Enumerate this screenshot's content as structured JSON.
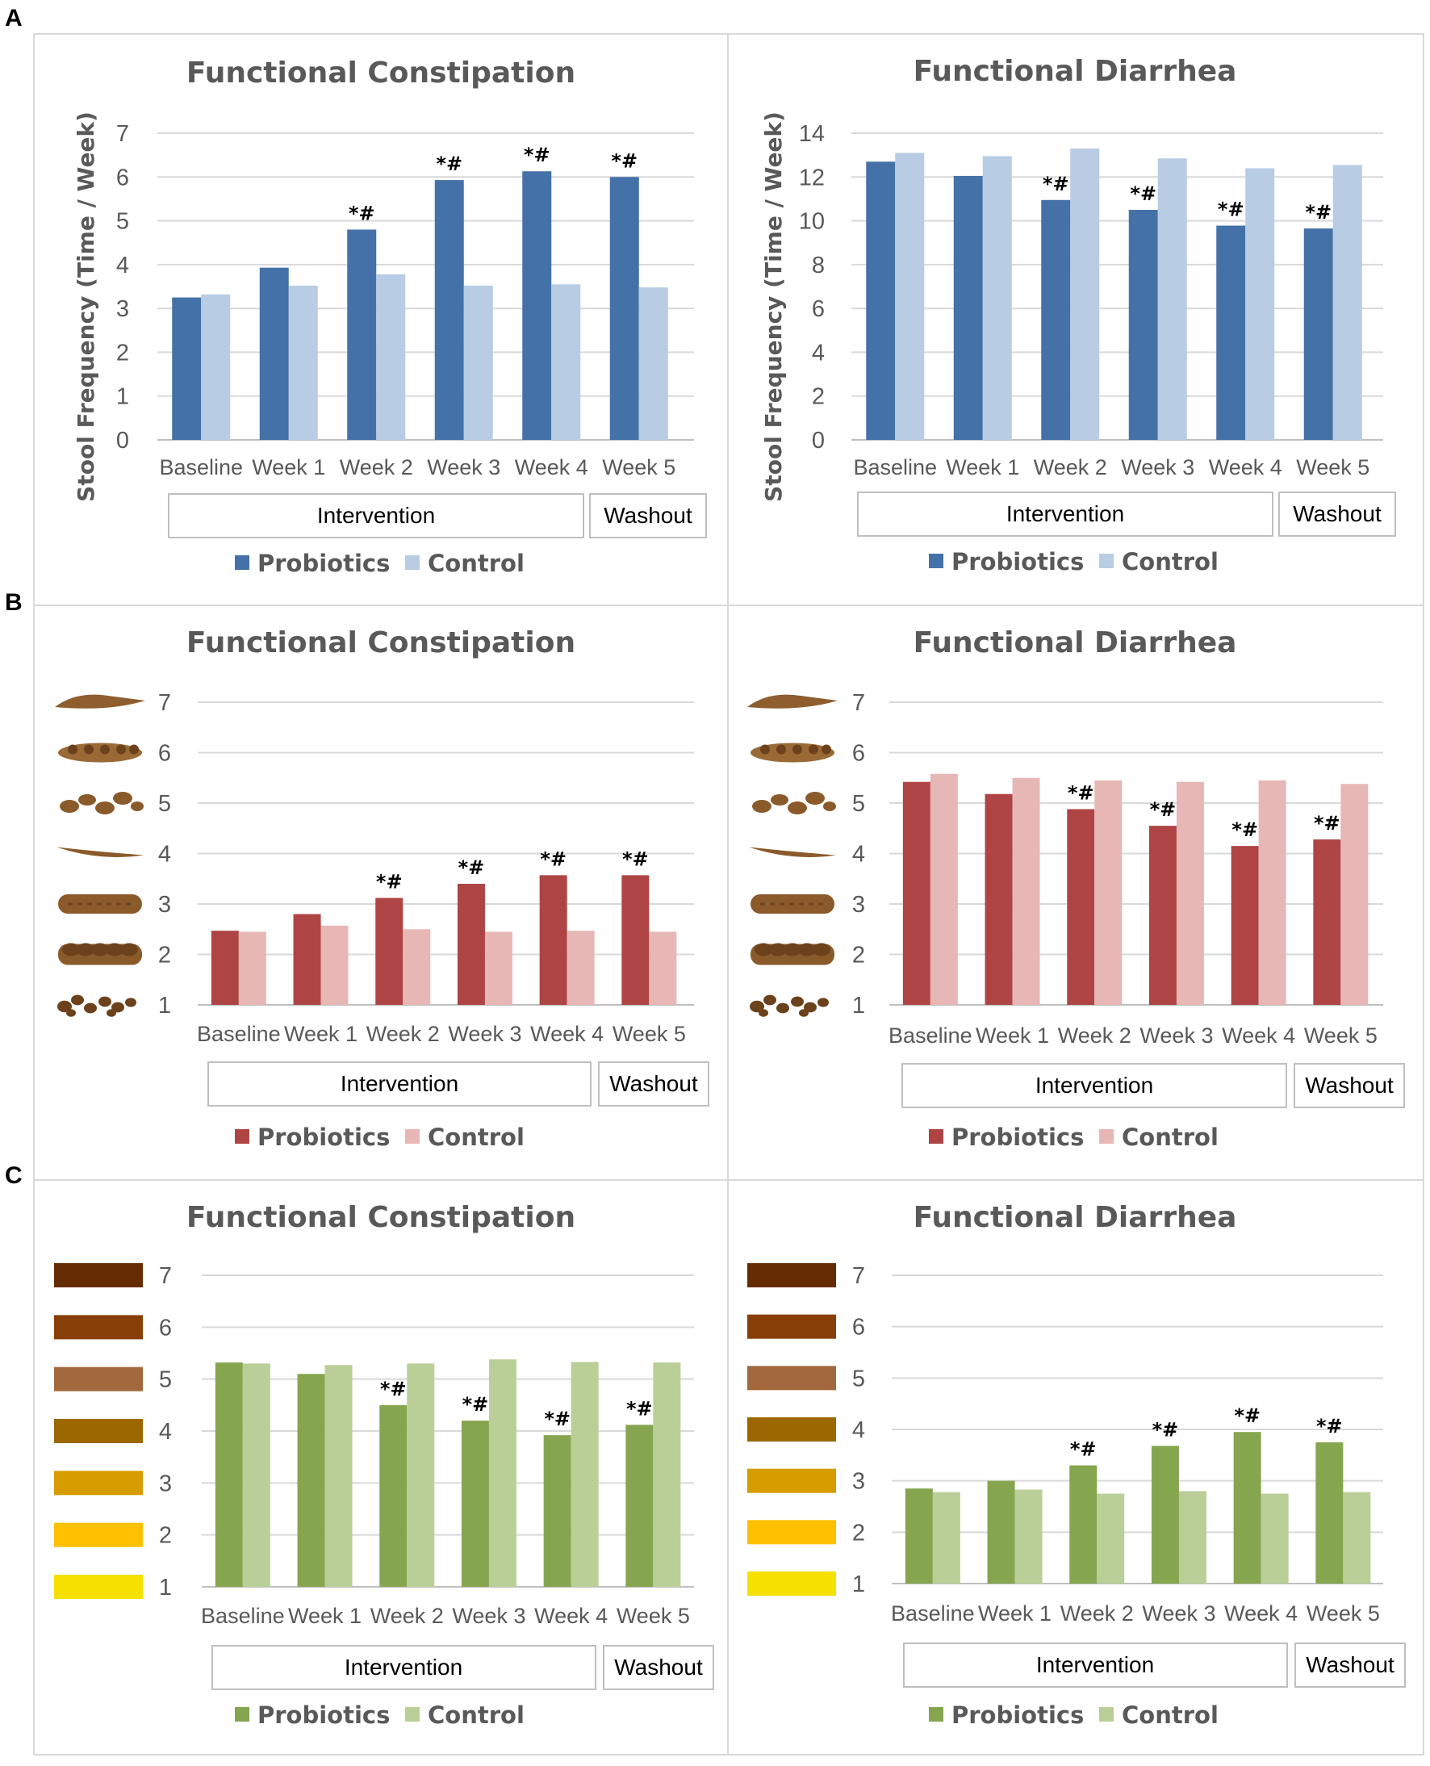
{
  "figure": {
    "panels": [
      "A",
      "B",
      "C"
    ],
    "group_labels": {
      "intervention": "Intervention",
      "washout": "Washout"
    },
    "significance_marker": "*#"
  },
  "chart_data": [
    {
      "id": "A-constipation",
      "panel": "A",
      "type": "bar",
      "title": "Functional Constipation",
      "xlabel": "",
      "ylabel": "Stool Frequency (Time / Week)",
      "ylim": [
        0,
        7
      ],
      "yticks": [
        0,
        1,
        2,
        3,
        4,
        5,
        6,
        7
      ],
      "categories": [
        "Baseline",
        "Week 1",
        "Week 2",
        "Week 3",
        "Week 4",
        "Week 5"
      ],
      "series": [
        {
          "name": "Probiotics",
          "color": "#4472A8",
          "values": [
            3.25,
            3.93,
            4.8,
            5.93,
            6.13,
            6.0
          ]
        },
        {
          "name": "Control",
          "color": "#B8CCE4",
          "values": [
            3.32,
            3.52,
            3.78,
            3.52,
            3.55,
            3.48
          ]
        }
      ],
      "significant": [
        false,
        false,
        true,
        true,
        true,
        true
      ],
      "legend": "bottom"
    },
    {
      "id": "A-diarrhea",
      "panel": "A",
      "type": "bar",
      "title": "Functional Diarrhea",
      "xlabel": "",
      "ylabel": "Stool Frequency (Time / Week)",
      "ylim": [
        0,
        14
      ],
      "yticks": [
        0,
        2,
        4,
        6,
        8,
        10,
        12,
        14
      ],
      "categories": [
        "Baseline",
        "Week 1",
        "Week 2",
        "Week 3",
        "Week 4",
        "Week 5"
      ],
      "series": [
        {
          "name": "Probiotics",
          "color": "#4472A8",
          "values": [
            12.7,
            12.05,
            10.95,
            10.5,
            9.78,
            9.65
          ]
        },
        {
          "name": "Control",
          "color": "#B8CCE4",
          "values": [
            13.1,
            12.95,
            13.3,
            12.85,
            12.4,
            12.55
          ]
        }
      ],
      "significant": [
        false,
        false,
        true,
        true,
        true,
        true
      ],
      "legend": "bottom"
    },
    {
      "id": "B-constipation",
      "panel": "B",
      "type": "bar",
      "title": "Functional Constipation",
      "xlabel": "",
      "ylabel": "",
      "ylim": [
        1,
        7
      ],
      "yticks": [
        1,
        2,
        3,
        4,
        5,
        6,
        7
      ],
      "y_icons": "stool-form",
      "categories": [
        "Baseline",
        "Week 1",
        "Week 2",
        "Week 3",
        "Week 4",
        "Week 5"
      ],
      "series": [
        {
          "name": "Probiotics",
          "color": "#AF4444",
          "values": [
            2.47,
            2.8,
            3.12,
            3.4,
            3.57,
            3.57
          ]
        },
        {
          "name": "Control",
          "color": "#E7B7B6",
          "values": [
            2.45,
            2.57,
            2.5,
            2.45,
            2.47,
            2.45
          ]
        }
      ],
      "significant": [
        false,
        false,
        true,
        true,
        true,
        true
      ],
      "legend": "bottom"
    },
    {
      "id": "B-diarrhea",
      "panel": "B",
      "type": "bar",
      "title": "Functional Diarrhea",
      "xlabel": "",
      "ylabel": "",
      "ylim": [
        1,
        7
      ],
      "yticks": [
        1,
        2,
        3,
        4,
        5,
        6,
        7
      ],
      "y_icons": "stool-form",
      "categories": [
        "Baseline",
        "Week 1",
        "Week 2",
        "Week 3",
        "Week 4",
        "Week 5"
      ],
      "series": [
        {
          "name": "Probiotics",
          "color": "#AF4444",
          "values": [
            5.42,
            5.18,
            4.88,
            4.55,
            4.15,
            4.28
          ]
        },
        {
          "name": "Control",
          "color": "#E7B7B6",
          "values": [
            5.58,
            5.5,
            5.45,
            5.42,
            5.45,
            5.38
          ]
        }
      ],
      "significant": [
        false,
        false,
        true,
        true,
        true,
        true
      ],
      "legend": "bottom"
    },
    {
      "id": "C-constipation",
      "panel": "C",
      "type": "bar",
      "title": "Functional Constipation",
      "xlabel": "",
      "ylabel": "",
      "ylim": [
        1,
        7
      ],
      "yticks": [
        1,
        2,
        3,
        4,
        5,
        6,
        7
      ],
      "y_swatches": [
        "#F5E000",
        "#FFC000",
        "#D69C00",
        "#9C6600",
        "#A3693D",
        "#883F06",
        "#652C03"
      ],
      "categories": [
        "Baseline",
        "Week 1",
        "Week 2",
        "Week 3",
        "Week 4",
        "Week 5"
      ],
      "series": [
        {
          "name": "Probiotics",
          "color": "#86A54F",
          "values": [
            5.32,
            5.1,
            4.5,
            4.2,
            3.92,
            4.12
          ]
        },
        {
          "name": "Control",
          "color": "#BACF97",
          "values": [
            5.3,
            5.27,
            5.3,
            5.38,
            5.33,
            5.32
          ]
        }
      ],
      "significant": [
        false,
        false,
        true,
        true,
        true,
        true
      ],
      "legend": "bottom"
    },
    {
      "id": "C-diarrhea",
      "panel": "C",
      "type": "bar",
      "title": "Functional Diarrhea",
      "xlabel": "",
      "ylabel": "",
      "ylim": [
        1,
        7
      ],
      "yticks": [
        1,
        2,
        3,
        4,
        5,
        6,
        7
      ],
      "y_swatches": [
        "#F5E000",
        "#FFC000",
        "#D69C00",
        "#9C6600",
        "#A3693D",
        "#883F06",
        "#652C03"
      ],
      "categories": [
        "Baseline",
        "Week 1",
        "Week 2",
        "Week 3",
        "Week 4",
        "Week 5"
      ],
      "series": [
        {
          "name": "Probiotics",
          "color": "#86A54F",
          "values": [
            2.85,
            3.0,
            3.3,
            3.68,
            3.95,
            3.75
          ]
        },
        {
          "name": "Control",
          "color": "#BACF97",
          "values": [
            2.78,
            2.83,
            2.75,
            2.8,
            2.75,
            2.78
          ]
        }
      ],
      "significant": [
        false,
        false,
        true,
        true,
        true,
        true
      ],
      "legend": "bottom"
    }
  ]
}
